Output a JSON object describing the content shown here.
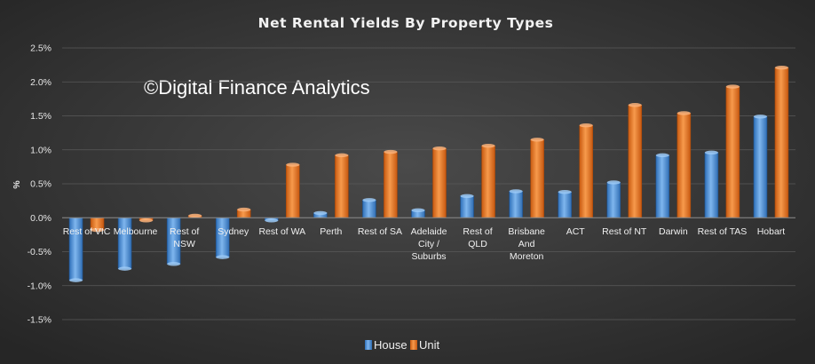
{
  "chart_data": {
    "type": "bar",
    "title": "Net Rental Yields By Property Types",
    "ylabel": "%",
    "xlabel": "",
    "watermark": "©Digital Finance Analytics",
    "categories": [
      "Rest of VIC",
      "Melbourne",
      "Rest of NSW",
      "Sydney",
      "Rest of WA",
      "Perth",
      "Rest of SA",
      "Adelaide City / Suburbs",
      "Rest of QLD",
      "Brisbane And Moreton",
      "ACT",
      "Rest of NT",
      "Darwin",
      "Rest of TAS",
      "Hobart"
    ],
    "series": [
      {
        "name": "House",
        "color": "#4a8fd6",
        "values": [
          -0.92,
          -0.75,
          -0.68,
          -0.58,
          -0.04,
          0.07,
          0.26,
          0.11,
          0.32,
          0.39,
          0.38,
          0.52,
          0.92,
          0.96,
          1.49
        ]
      },
      {
        "name": "Unit",
        "color": "#ec7a22",
        "values": [
          -0.18,
          -0.04,
          0.03,
          0.12,
          0.78,
          0.92,
          0.97,
          1.02,
          1.06,
          1.15,
          1.36,
          1.66,
          1.54,
          1.93,
          2.21
        ]
      }
    ],
    "ylim": [
      -1.5,
      2.5
    ],
    "yticks": [
      "-1.5%",
      "-1.0%",
      "-0.5%",
      "0.0%",
      "0.5%",
      "1.0%",
      "1.5%",
      "2.0%",
      "2.5%"
    ],
    "ytick_values": [
      -1.5,
      -1.0,
      -0.5,
      0.0,
      0.5,
      1.0,
      1.5,
      2.0,
      2.5
    ],
    "grid": true,
    "legend": "bottom"
  }
}
